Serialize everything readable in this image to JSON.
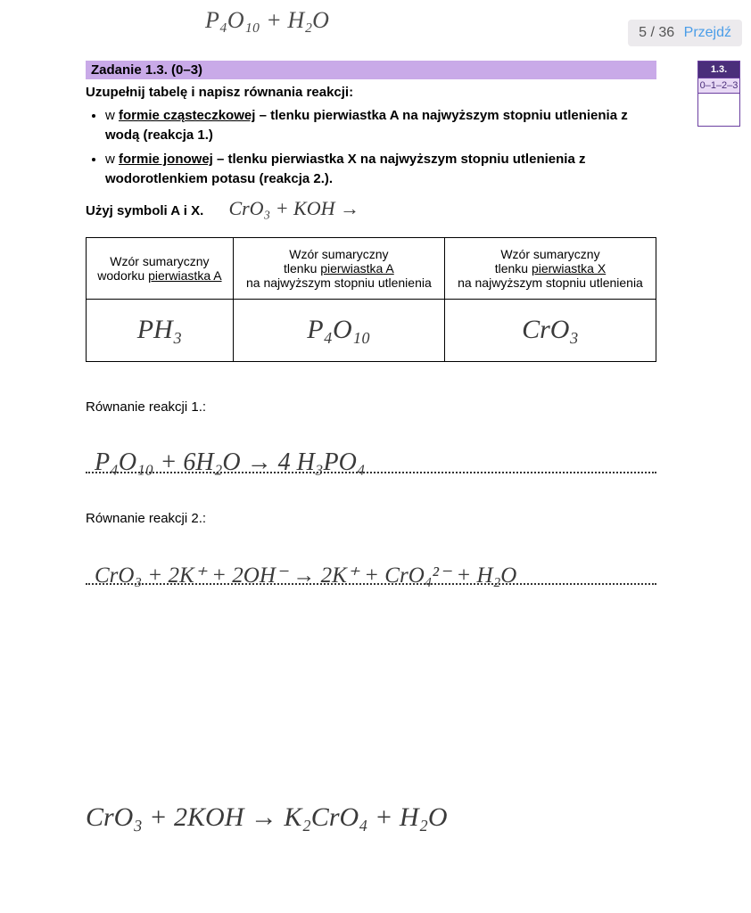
{
  "nav": {
    "page": "5 / 36",
    "go": "Przejdź"
  },
  "top_hand": "P₄O₁₀ + H₂O",
  "task": {
    "header": "Zadanie 1.3. (0–3)",
    "intro": "Uzupełnij tabelę i napisz równania reakcji:",
    "bullet1_a": "w ",
    "bullet1_b": "formie cząsteczkowej",
    "bullet1_c": " – tlenku pierwiastka A na najwyższym stopniu utlenienia z wodą (reakcja 1.)",
    "bullet2_a": "w ",
    "bullet2_b": "formie jonowej",
    "bullet2_c": " – tlenku pierwiastka X na najwyższym stopniu utlenienia z wodorotlenkiem potasu (reakcja 2.).",
    "use_symbols": "Użyj symboli A i X.",
    "inline_hand": "CrO₃ + KOH →"
  },
  "scorebox": {
    "top": "1.3.",
    "mid": "0–1–2–3"
  },
  "table": {
    "h1a": "Wzór sumaryczny",
    "h1b": "wodorku ",
    "h1c": "pierwiastka A",
    "h2a": "Wzór sumaryczny",
    "h2b": "tlenku ",
    "h2c": "pierwiastka A",
    "h2d": "na najwyższym stopniu utlenienia",
    "h3a": "Wzór sumaryczny",
    "h3b": "tlenku ",
    "h3c": "pierwiastka X",
    "h3d": "na najwyższym stopniu utlenienia",
    "c1": "PH₃",
    "c2": "P₄O₁₀",
    "c3": "CrO₃"
  },
  "r1_label": "Równanie reakcji 1.:",
  "r1_eq": "P₄O₁₀ + 6H₂O → 4 H₃PO₄",
  "r2_label": "Równanie reakcji 2.:",
  "r2_eq": "CrO₃ + 2K⁺ + 2OH⁻ → 2K⁺ + CrO₄²⁻ + H₂O",
  "bottom_eq": "CrO₃ + 2KOH → K₂CrO₄ + H₂O",
  "colors": {
    "header_bg": "#c9aae8",
    "scorebox_bg": "#4a2e7a",
    "scorebox_mid": "#e8d9f5",
    "nav_bg": "#eceaed",
    "link": "#4a9de8",
    "handwriting": "#3a3a3a"
  }
}
